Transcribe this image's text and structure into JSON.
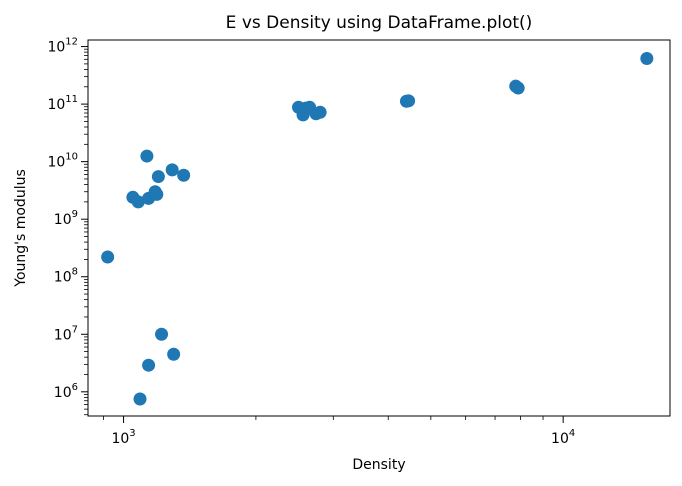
{
  "chart_data": {
    "type": "scatter",
    "title": "E vs Density using DataFrame.plot()",
    "xlabel": "Density",
    "ylabel": "Young's modulus",
    "x_scale": "log",
    "y_scale": "log",
    "xlim": [
      830,
      17500
    ],
    "ylim": [
      380000,
      1300000000000
    ],
    "x_ticks": [
      {
        "base": "10",
        "exp": "3",
        "value": 1000
      },
      {
        "base": "10",
        "exp": "4",
        "value": 10000
      }
    ],
    "y_ticks": [
      {
        "base": "10",
        "exp": "6",
        "value": 1000000
      },
      {
        "base": "10",
        "exp": "7",
        "value": 10000000
      },
      {
        "base": "10",
        "exp": "8",
        "value": 100000000
      },
      {
        "base": "10",
        "exp": "9",
        "value": 1000000000
      },
      {
        "base": "10",
        "exp": "10",
        "value": 10000000000
      },
      {
        "base": "10",
        "exp": "11",
        "value": 100000000000
      },
      {
        "base": "10",
        "exp": "12",
        "value": 1000000000000
      }
    ],
    "grid": false,
    "marker_color": "#1f77b4",
    "points": [
      {
        "x": 920,
        "y": 220000000
      },
      {
        "x": 1050,
        "y": 2400000000
      },
      {
        "x": 1080,
        "y": 2000000000
      },
      {
        "x": 1130,
        "y": 12500000000
      },
      {
        "x": 1140,
        "y": 2300000000
      },
      {
        "x": 1180,
        "y": 3000000000
      },
      {
        "x": 1190,
        "y": 2700000000
      },
      {
        "x": 1200,
        "y": 5500000000
      },
      {
        "x": 1290,
        "y": 7200000000
      },
      {
        "x": 1370,
        "y": 5800000000
      },
      {
        "x": 1090,
        "y": 750000
      },
      {
        "x": 1140,
        "y": 2900000
      },
      {
        "x": 1220,
        "y": 10000000
      },
      {
        "x": 1300,
        "y": 4500000
      },
      {
        "x": 2500,
        "y": 88000000000
      },
      {
        "x": 2560,
        "y": 65000000000
      },
      {
        "x": 2600,
        "y": 85000000000
      },
      {
        "x": 2650,
        "y": 88000000000
      },
      {
        "x": 2740,
        "y": 68000000000
      },
      {
        "x": 2800,
        "y": 72000000000
      },
      {
        "x": 4400,
        "y": 112000000000
      },
      {
        "x": 4450,
        "y": 114000000000
      },
      {
        "x": 7800,
        "y": 205000000000
      },
      {
        "x": 7900,
        "y": 190000000000
      },
      {
        "x": 15500,
        "y": 620000000000
      }
    ]
  }
}
